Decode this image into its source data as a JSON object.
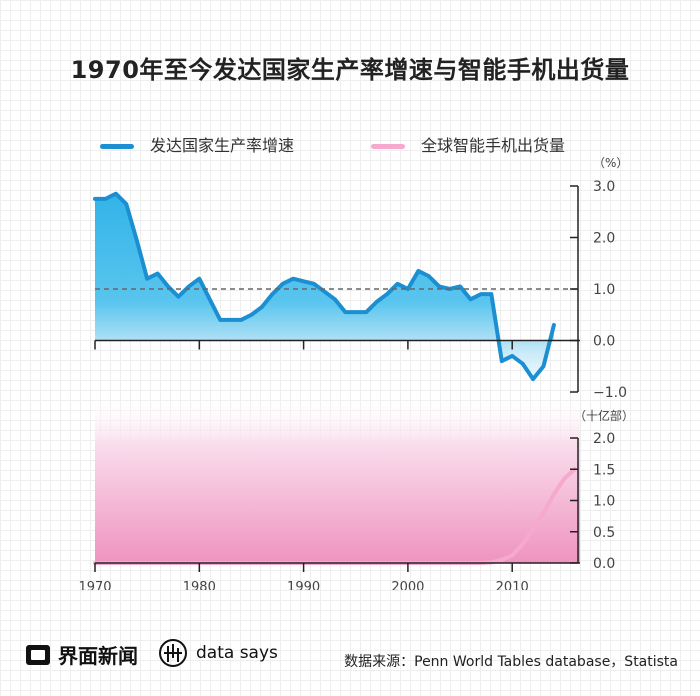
{
  "title": "1970年至今发达国家生产率增速与智能手机出货量",
  "legend": {
    "series_a": "发达国家生产率增速",
    "series_b": "全球智能手机出货量"
  },
  "colors": {
    "series_a": "#1b8fd2",
    "series_a_fill": "#35b6e8",
    "series_b": "#f6a8cd",
    "series_b_fill": "#f08fbd",
    "refline": "#666666"
  },
  "footer": {
    "brand": "界面新闻",
    "data_says": "data says",
    "source": "数据来源：Penn World Tables database，Statista"
  },
  "chart_data": [
    {
      "type": "area",
      "unit_label": "（%）",
      "ylim": [
        -1.0,
        3.0
      ],
      "yticks": [
        "3.0",
        "2.0",
        "1.0",
        "0.0",
        "−1.0"
      ],
      "ytick_values": [
        3.0,
        2.0,
        1.0,
        0.0,
        -1.0
      ],
      "reference_line": 1.0,
      "series": [
        {
          "name": "发达国家生产率增速",
          "x": [
            1970,
            1971,
            1972,
            1973,
            1974,
            1975,
            1976,
            1977,
            1978,
            1979,
            1980,
            1981,
            1982,
            1983,
            1984,
            1985,
            1986,
            1987,
            1988,
            1989,
            1990,
            1991,
            1992,
            1993,
            1994,
            1995,
            1996,
            1997,
            1998,
            1999,
            2000,
            2001,
            2002,
            2003,
            2004,
            2005,
            2006,
            2007,
            2008,
            2009,
            2010,
            2011,
            2012,
            2013,
            2014
          ],
          "values": [
            2.75,
            2.75,
            2.85,
            2.65,
            1.95,
            1.2,
            1.3,
            1.05,
            0.85,
            1.05,
            1.2,
            0.8,
            0.4,
            0.4,
            0.4,
            0.5,
            0.65,
            0.9,
            1.1,
            1.2,
            1.15,
            1.1,
            0.95,
            0.8,
            0.55,
            0.55,
            0.55,
            0.75,
            0.9,
            1.1,
            1.0,
            1.35,
            1.25,
            1.05,
            1.0,
            1.05,
            0.8,
            0.9,
            0.9,
            -0.4,
            -0.3,
            -0.45,
            -0.75,
            -0.5,
            0.3
          ]
        }
      ]
    },
    {
      "type": "area",
      "unit_label": "（十亿部）",
      "ylim": [
        0.0,
        2.0
      ],
      "yticks": [
        "2.0",
        "1.5",
        "1.0",
        "0.5",
        "0.0"
      ],
      "ytick_values": [
        2.0,
        1.5,
        1.0,
        0.5,
        0.0
      ],
      "xticks": [
        1970,
        1980,
        1990,
        2000,
        2010
      ],
      "series": [
        {
          "name": "全球智能手机出货量",
          "x": [
            1970,
            2007,
            2008,
            2009,
            2010,
            2011,
            2012,
            2013,
            2014,
            2015,
            2016
          ],
          "values": [
            0.0,
            0.0,
            0.01,
            0.05,
            0.12,
            0.3,
            0.55,
            0.8,
            1.1,
            1.35,
            1.5
          ]
        }
      ]
    }
  ]
}
